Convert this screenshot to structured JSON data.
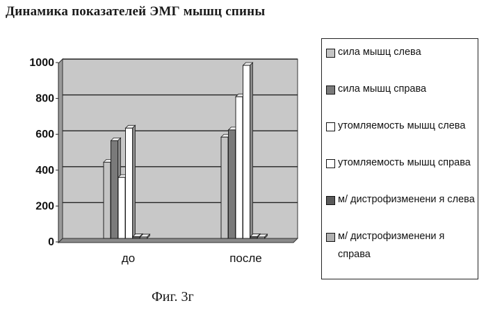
{
  "title": "Динамика показателей ЭМГ мышц спины",
  "caption": "Фиг. 3г",
  "chart_data": {
    "type": "bar",
    "categories": [
      "до",
      "после"
    ],
    "ylim": [
      0,
      1000
    ],
    "yticks": [
      0,
      200,
      400,
      600,
      800,
      1000
    ],
    "grid": true,
    "legend_position": "right",
    "series": [
      {
        "name": "сила мышц слева",
        "color": "#c4c4c4",
        "values": [
          425,
          565
        ]
      },
      {
        "name": "сила мышц справа",
        "color": "#7a7a7a",
        "values": [
          545,
          605
        ]
      },
      {
        "name": "утомляемость мышц слева",
        "color": "#ffffff",
        "values": [
          340,
          790
        ]
      },
      {
        "name": "утомляемость мышц справа",
        "color": "#ffffff",
        "values": [
          615,
          965
        ]
      },
      {
        "name": "м/ дистрофизменения слева",
        "color": "#5a5a5a",
        "values": [
          10,
          10
        ]
      },
      {
        "name": "м/ дистрофизменения справа",
        "color": "#b0b0b0",
        "values": [
          8,
          8
        ]
      }
    ],
    "plot_bg": "#c8c8c8"
  },
  "legend": {
    "items": [
      {
        "label": "сила мышц слева",
        "color": "#c4c4c4"
      },
      {
        "label": "сила мышц справа",
        "color": "#7a7a7a"
      },
      {
        "label": "утомляемость мышц слева",
        "color": "#ffffff"
      },
      {
        "label": "утомляемость мышц справа",
        "color": "#ffffff"
      },
      {
        "label": "м/ дистрофизменени я слева",
        "color": "#5a5a5a"
      },
      {
        "label": "м/ дистрофизменени я справа",
        "color": "#b0b0b0"
      }
    ]
  }
}
